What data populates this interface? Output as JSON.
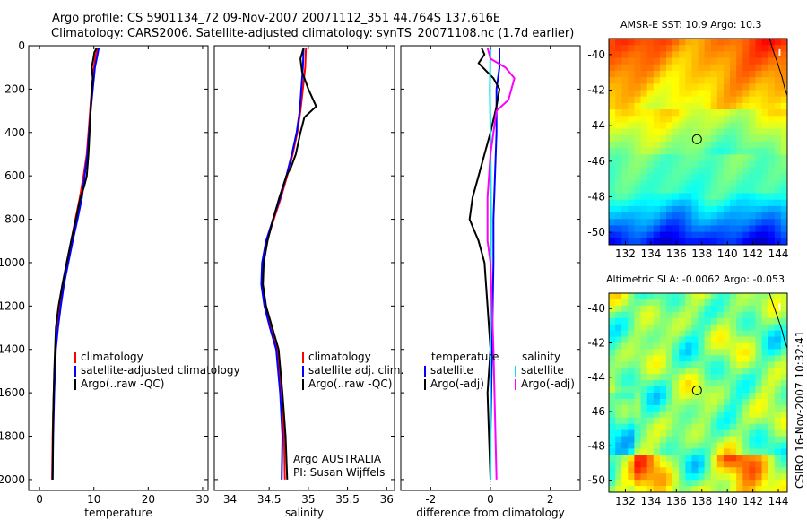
{
  "header": {
    "line1": "Argo profile: CS 5901134_72 09-Nov-2007 20071112_351 44.764S 137.616E",
    "line2": "Climatology: CARS2006. Satellite-adjusted climatology: synTS_20071108.nc (1.7d earlier)"
  },
  "chart_data": [
    {
      "type": "line",
      "id": "temperature",
      "xlabel": "temperature",
      "ylabel": "",
      "xlim": [
        -2,
        31
      ],
      "ylim": [
        2050,
        0
      ],
      "xticks": [
        0,
        10,
        20,
        30
      ],
      "xtick_labels": [
        "0",
        "10",
        "20",
        "30"
      ],
      "yticks": [
        0,
        200,
        400,
        600,
        800,
        1000,
        1200,
        1400,
        1600,
        1800,
        2000
      ],
      "ytick_labels": [
        "0",
        "200",
        "400",
        "600",
        "800",
        "1000",
        "1200",
        "1400",
        "1600",
        "1800",
        "2000"
      ],
      "legend": [
        "climatology",
        "satellite-adjusted climatology",
        "Argo(..raw -QC)"
      ],
      "series": [
        {
          "name": "climatology",
          "color": "#ff0000",
          "x": [
            10.6,
            10.3,
            10.0,
            9.6,
            9.3,
            9.0,
            8.7,
            8.1,
            7.4,
            6.6,
            5.8,
            5.0,
            4.4,
            3.8,
            3.3,
            2.9,
            2.6,
            2.4,
            2.3
          ],
          "y": [
            10,
            50,
            100,
            200,
            300,
            400,
            500,
            600,
            700,
            800,
            900,
            1000,
            1100,
            1200,
            1300,
            1400,
            1600,
            1800,
            2000
          ]
        },
        {
          "name": "satellite-adjusted climatology",
          "color": "#0000ff",
          "x": [
            10.9,
            10.6,
            10.2,
            9.8,
            9.4,
            9.1,
            8.8,
            8.3,
            7.8,
            7.0,
            6.1,
            5.3,
            4.5,
            3.9,
            3.4,
            3.0,
            2.7,
            2.5,
            2.4
          ],
          "y": [
            10,
            50,
            100,
            200,
            300,
            400,
            500,
            600,
            700,
            800,
            900,
            1000,
            1100,
            1200,
            1300,
            1400,
            1600,
            1800,
            2000
          ]
        },
        {
          "name": "Argo(..raw -QC)",
          "color": "#000000",
          "x": [
            10.5,
            10.1,
            9.9,
            9.6,
            9.8,
            9.5,
            9.4,
            9.2,
            9.0,
            8.7,
            8.2,
            7.5,
            6.7,
            5.8,
            5.0,
            4.2,
            3.5,
            3.0,
            2.7,
            2.5,
            2.4
          ],
          "y": [
            10,
            30,
            60,
            100,
            150,
            250,
            300,
            400,
            500,
            600,
            650,
            700,
            800,
            900,
            1000,
            1100,
            1200,
            1300,
            1500,
            1700,
            2000
          ]
        }
      ]
    },
    {
      "type": "line",
      "id": "salinity",
      "xlabel": "salinity",
      "ylabel": "",
      "xlim": [
        33.8,
        36.1
      ],
      "ylim": [
        2050,
        0
      ],
      "xticks": [
        34,
        34.5,
        35,
        35.5,
        36
      ],
      "xtick_labels": [
        "34",
        "34.5",
        "35",
        "35.5",
        "36"
      ],
      "legend": [
        "climatology",
        "satellite adj. clim.",
        "Argo(..raw -QC)"
      ],
      "annotation": [
        "Argo AUSTRALIA",
        "PI: Susan Wijffels"
      ],
      "series": [
        {
          "name": "climatology",
          "color": "#ff0000",
          "x": [
            34.97,
            34.96,
            34.93,
            34.9,
            34.86,
            34.8,
            34.73,
            34.65,
            34.56,
            34.47,
            34.42,
            34.41,
            34.45,
            34.52,
            34.6,
            34.66,
            34.69,
            34.7
          ],
          "y": [
            10,
            100,
            200,
            300,
            400,
            500,
            600,
            700,
            800,
            900,
            1000,
            1100,
            1200,
            1300,
            1400,
            1600,
            1800,
            2000
          ]
        },
        {
          "name": "satellite adj. clim.",
          "color": "#0000ff",
          "x": [
            34.94,
            34.93,
            34.91,
            34.89,
            34.85,
            34.79,
            34.72,
            34.64,
            34.55,
            34.46,
            34.41,
            34.4,
            34.44,
            34.51,
            34.59,
            34.64,
            34.67,
            34.66
          ],
          "y": [
            10,
            100,
            200,
            300,
            400,
            500,
            600,
            700,
            800,
            900,
            1000,
            1100,
            1200,
            1300,
            1400,
            1600,
            1800,
            2000
          ]
        },
        {
          "name": "Argo(..raw -QC)",
          "color": "#000000",
          "x": [
            34.94,
            34.9,
            34.92,
            35.0,
            35.1,
            34.95,
            34.9,
            34.84,
            34.78,
            34.72,
            34.63,
            34.55,
            34.48,
            34.43,
            34.42,
            34.46,
            34.54,
            34.62,
            34.67,
            34.71,
            34.73
          ],
          "y": [
            10,
            60,
            120,
            200,
            280,
            330,
            400,
            500,
            560,
            600,
            700,
            800,
            900,
            1000,
            1100,
            1200,
            1300,
            1400,
            1600,
            1800,
            2000
          ]
        }
      ]
    },
    {
      "type": "line",
      "id": "difference",
      "xlabel": "difference from climatology",
      "ylabel": "",
      "xlim": [
        -3,
        3
      ],
      "ylim": [
        2050,
        0
      ],
      "xticks": [
        -2,
        0,
        2
      ],
      "xtick_labels": [
        "-2",
        "0",
        "2"
      ],
      "legend": [
        {
          "header": "temperature",
          "items": [
            "satellite",
            "Argo(-adj)"
          ]
        },
        {
          "header": "salinity",
          "items": [
            "satellite",
            "Argo(-adj)"
          ]
        }
      ],
      "series": [
        {
          "name": "temperature satellite",
          "color": "#0000ff",
          "x": [
            0.3,
            0.3,
            0.2,
            0.2,
            0.15,
            0.1,
            0.1,
            0.05,
            0.0,
            0.0
          ],
          "y": [
            10,
            100,
            200,
            400,
            600,
            800,
            1000,
            1400,
            1800,
            2000
          ]
        },
        {
          "name": "temperature Argo(-adj)",
          "color": "#000000",
          "x": [
            -0.3,
            -0.2,
            -0.4,
            0.1,
            0.3,
            0.2,
            0.0,
            -0.2,
            -0.4,
            -0.6,
            -0.7,
            -0.4,
            -0.2,
            -0.1,
            0.0,
            -0.1,
            0.0
          ],
          "y": [
            10,
            40,
            80,
            150,
            200,
            280,
            400,
            500,
            600,
            700,
            800,
            900,
            1000,
            1200,
            1400,
            1600,
            2000
          ]
        },
        {
          "name": "salinity satellite",
          "color": "#00e5e5",
          "x": [
            0.0,
            -0.02,
            0.0,
            0.02,
            0.0,
            0.0,
            0.0
          ],
          "y": [
            10,
            200,
            400,
            800,
            1200,
            1600,
            2000
          ]
        },
        {
          "name": "salinity Argo(-adj)",
          "color": "#ff00ff",
          "x": [
            -0.1,
            0.0,
            0.5,
            0.8,
            0.6,
            0.2,
            0.1,
            0.0,
            -0.1,
            -0.1,
            0.0,
            0.05,
            0.1,
            0.15,
            0.2
          ],
          "y": [
            10,
            60,
            100,
            150,
            250,
            300,
            400,
            500,
            700,
            900,
            1000,
            1200,
            1400,
            1700,
            2000
          ]
        }
      ]
    },
    {
      "type": "heatmap",
      "id": "sst",
      "title": "AMSR-E SST: 10.9 Argo: 10.3",
      "xlim": [
        130.7,
        144.7
      ],
      "ylim": [
        -50.7,
        -39.1
      ],
      "xticks": [
        132,
        134,
        136,
        138,
        140,
        142,
        144
      ],
      "xtick_labels": [
        "132",
        "134",
        "136",
        "138",
        "140",
        "142",
        "144"
      ],
      "yticks": [
        -40,
        -42,
        -44,
        -46,
        -48,
        -50
      ],
      "ytick_labels": [
        "-40",
        "-42",
        "-44",
        "-46",
        "-48",
        "-50"
      ],
      "marker": {
        "lon": 137.616,
        "lat": -44.764
      }
    },
    {
      "type": "heatmap",
      "id": "sla",
      "title": "Altimetric SLA: -0.0062 Argo: -0.053",
      "xlim": [
        130.7,
        144.7
      ],
      "ylim": [
        -50.7,
        -39.1
      ],
      "xticks": [
        132,
        134,
        136,
        138,
        140,
        142,
        144
      ],
      "xtick_labels": [
        "132",
        "134",
        "136",
        "138",
        "140",
        "142",
        "144"
      ],
      "yticks": [
        -40,
        -42,
        -44,
        -46,
        -48,
        -50
      ],
      "ytick_labels": [
        "-40",
        "-42",
        "-44",
        "-46",
        "-48",
        "-50"
      ],
      "marker": {
        "lon": 137.616,
        "lat": -44.764
      }
    }
  ],
  "footer": {
    "stamp": "CSIRO 16-Nov-2007 10:32:41"
  }
}
